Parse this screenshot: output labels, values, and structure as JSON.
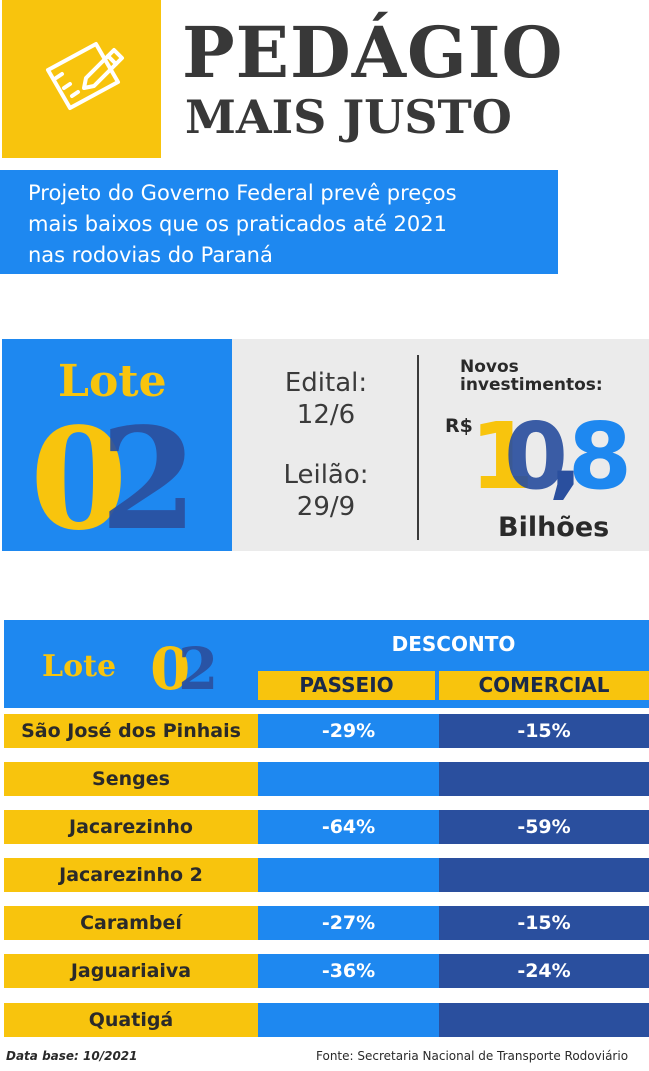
{
  "header": {
    "icon": "pencil-ruler-icon",
    "title_line1": "PEDÁGIO",
    "title_line2": "MAIS JUSTO",
    "subtitle": [
      "Projeto do Governo Federal prevê preços",
      "mais baixos que os praticados até 2021",
      "nas rodovias do Paraná"
    ]
  },
  "lote_panel": {
    "label": "Lote",
    "number": "02",
    "edital_label": "Edital:",
    "edital_date": "12/6",
    "leilao_label": "Leilão:",
    "leilao_date": "29/9",
    "investment_label_1": "Novos",
    "investment_label_2": "investimentos:",
    "currency": "R$",
    "investment_value": "10,8",
    "investment_unit": "Bilhões"
  },
  "table": {
    "lote_label": "Lote",
    "lote_number": "02",
    "group_header": "DESCONTO",
    "col_passeio": "PASSEIO",
    "col_comercial": "COMERCIAL",
    "rows": [
      {
        "city": "São José dos Pinhais",
        "passeio": "-29%",
        "comercial": "-15%"
      },
      {
        "city": "Senges",
        "passeio": "",
        "comercial": ""
      },
      {
        "city": "Jacarezinho",
        "passeio": "-64%",
        "comercial": "-59%"
      },
      {
        "city": "Jacarezinho 2",
        "passeio": "",
        "comercial": ""
      },
      {
        "city": "Carambeí",
        "passeio": "-27%",
        "comercial": "-15%"
      },
      {
        "city": "Jaguariaiva",
        "passeio": "-36%",
        "comercial": "-24%"
      },
      {
        "city": "Quatigá",
        "passeio": "",
        "comercial": ""
      }
    ]
  },
  "footer": {
    "data_base": "Data base: 10/2021",
    "fonte": "Fonte: Secretaria Nacional de Transporte Rodoviário"
  },
  "colors": {
    "yellow": "#f8c40d",
    "blue": "#1e88f0",
    "dark_blue": "#2a4f9e",
    "gray_text": "#383838",
    "panel_gray": "#ebebeb"
  }
}
